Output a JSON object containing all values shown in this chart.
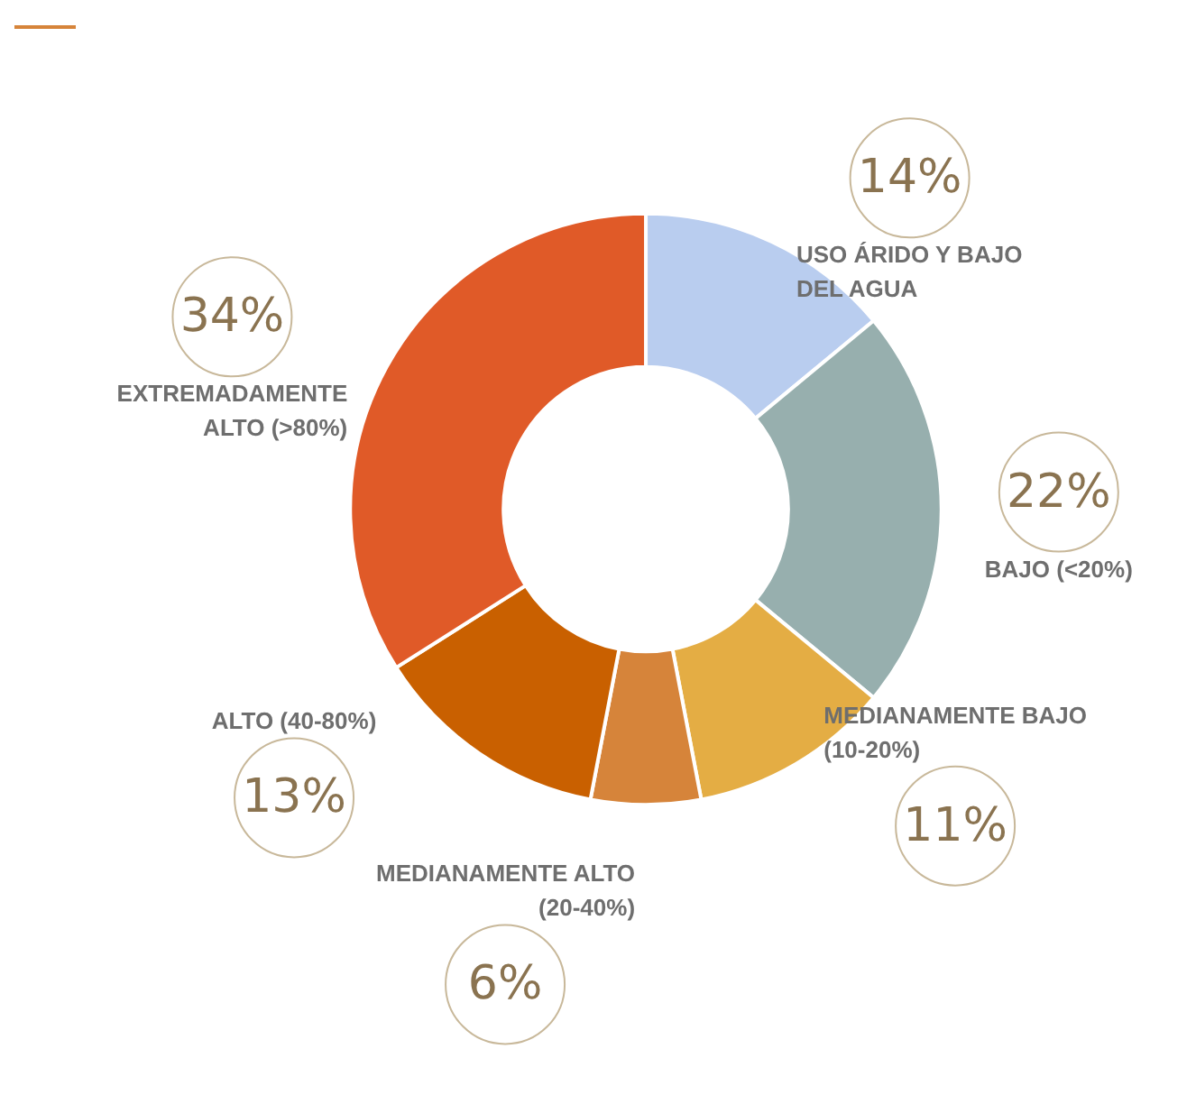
{
  "chart_data": {
    "type": "donut",
    "categories": [
      "USO ÁRIDO Y BAJO DEL AGUA",
      "BAJO (<20%)",
      "MEDIANAMENTE BAJO (10-20%)",
      "MEDIANAMENTE ALTO (20-40%)",
      "ALTO (40-80%)",
      "EXTREMADAMENTE ALTO (>80%)"
    ],
    "values": [
      14,
      22,
      11,
      6,
      13,
      34
    ],
    "value_labels": [
      "14%",
      "22%",
      "11%",
      "6%",
      "13%",
      "34%"
    ],
    "colors": [
      "#b9cdef",
      "#97afae",
      "#e4ad44",
      "#d6843a",
      "#c96000",
      "#e05a28"
    ],
    "legend": false
  }
}
